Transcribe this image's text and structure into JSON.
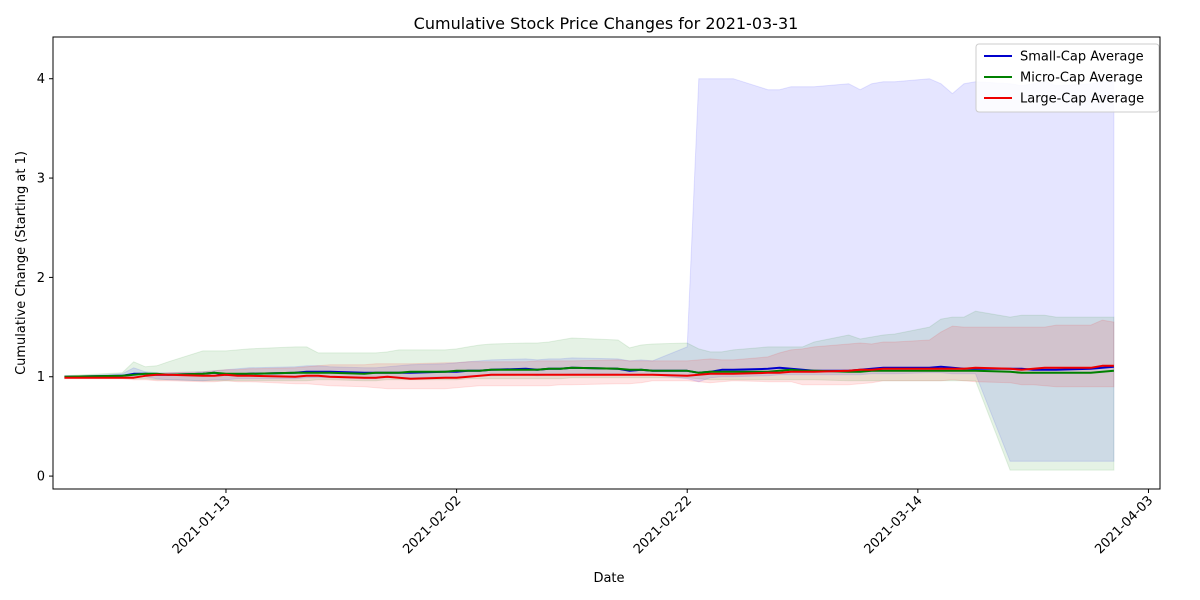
{
  "chart_data": {
    "type": "line",
    "title": "Cumulative Stock Price Changes for 2021-03-31",
    "xlabel": "Date",
    "ylabel": "Cumulative Change (Starting at 1)",
    "ylim": [
      -0.13,
      4.42
    ],
    "xlim": [
      "2020-12-29",
      "2021-04-04"
    ],
    "x_ticks": [
      "2021-01-13",
      "2021-02-02",
      "2021-02-22",
      "2021-03-14",
      "2021-04-03"
    ],
    "y_ticks": [
      0,
      1,
      2,
      3,
      4
    ],
    "grid": false,
    "legend_position": "top-right",
    "x": [
      "2020-12-30",
      "2021-01-04",
      "2021-01-05",
      "2021-01-06",
      "2021-01-07",
      "2021-01-08",
      "2021-01-11",
      "2021-01-12",
      "2021-01-13",
      "2021-01-14",
      "2021-01-15",
      "2021-01-19",
      "2021-01-20",
      "2021-01-21",
      "2021-01-22",
      "2021-01-25",
      "2021-01-26",
      "2021-01-27",
      "2021-01-28",
      "2021-01-29",
      "2021-02-01",
      "2021-02-02",
      "2021-02-03",
      "2021-02-04",
      "2021-02-05",
      "2021-02-08",
      "2021-02-09",
      "2021-02-10",
      "2021-02-11",
      "2021-02-12",
      "2021-02-16",
      "2021-02-17",
      "2021-02-18",
      "2021-02-19",
      "2021-02-22",
      "2021-02-23",
      "2021-02-24",
      "2021-02-25",
      "2021-02-26",
      "2021-03-01",
      "2021-03-02",
      "2021-03-03",
      "2021-03-04",
      "2021-03-05",
      "2021-03-08",
      "2021-03-09",
      "2021-03-10",
      "2021-03-11",
      "2021-03-12",
      "2021-03-15",
      "2021-03-16",
      "2021-03-17",
      "2021-03-18",
      "2021-03-19",
      "2021-03-22",
      "2021-03-23",
      "2021-03-24",
      "2021-03-25",
      "2021-03-26",
      "2021-03-29",
      "2021-03-30",
      "2021-03-31"
    ],
    "series": [
      {
        "name": "Small-Cap Average",
        "color": "#0000cc",
        "band_color": "#0000ff",
        "values": [
          1.0,
          1.01,
          1.03,
          1.03,
          1.02,
          1.02,
          1.03,
          1.04,
          1.02,
          1.02,
          1.03,
          1.04,
          1.05,
          1.05,
          1.05,
          1.04,
          1.04,
          1.04,
          1.04,
          1.04,
          1.05,
          1.05,
          1.06,
          1.06,
          1.07,
          1.08,
          1.07,
          1.08,
          1.08,
          1.09,
          1.08,
          1.06,
          1.07,
          1.06,
          1.06,
          1.04,
          1.05,
          1.07,
          1.07,
          1.08,
          1.09,
          1.08,
          1.07,
          1.06,
          1.06,
          1.07,
          1.08,
          1.09,
          1.09,
          1.09,
          1.1,
          1.09,
          1.08,
          1.08,
          1.08,
          1.08,
          1.07,
          1.07,
          1.07,
          1.08,
          1.09,
          1.1
        ],
        "band_low": [
          0.99,
          0.99,
          1.0,
          1.0,
          0.98,
          0.97,
          0.96,
          0.97,
          0.97,
          0.98,
          0.98,
          0.98,
          0.99,
          0.99,
          0.99,
          0.98,
          0.98,
          0.99,
          0.99,
          0.99,
          1.0,
          1.0,
          1.01,
          1.01,
          1.01,
          1.02,
          1.01,
          1.02,
          1.02,
          1.03,
          1.03,
          1.02,
          1.02,
          1.02,
          0.98,
          0.95,
          0.99,
          1.0,
          1.0,
          1.01,
          1.02,
          1.02,
          1.02,
          1.02,
          1.02,
          1.02,
          1.03,
          1.03,
          1.03,
          1.04,
          1.04,
          1.03,
          1.03,
          1.03,
          0.15,
          0.15,
          0.15,
          0.15,
          0.15,
          0.15,
          0.15,
          0.15
        ],
        "band_high": [
          1.0,
          1.03,
          1.09,
          1.05,
          1.04,
          1.04,
          1.05,
          1.06,
          1.07,
          1.08,
          1.09,
          1.1,
          1.11,
          1.11,
          1.1,
          1.09,
          1.09,
          1.1,
          1.11,
          1.12,
          1.13,
          1.14,
          1.15,
          1.16,
          1.17,
          1.18,
          1.17,
          1.18,
          1.18,
          1.19,
          1.18,
          1.16,
          1.17,
          1.16,
          1.3,
          4.0,
          4.0,
          4.0,
          4.0,
          3.89,
          3.89,
          3.92,
          3.92,
          3.92,
          3.95,
          3.89,
          3.95,
          3.97,
          3.97,
          4.0,
          3.95,
          3.85,
          3.95,
          3.97,
          3.95,
          3.93,
          3.95,
          3.97,
          3.93,
          3.95,
          3.97,
          3.97
        ]
      },
      {
        "name": "Micro-Cap Average",
        "color": "#008000",
        "band_color": "#008000",
        "values": [
          1.0,
          1.01,
          1.02,
          1.03,
          1.03,
          1.02,
          1.03,
          1.04,
          1.03,
          1.03,
          1.03,
          1.04,
          1.04,
          1.04,
          1.04,
          1.03,
          1.04,
          1.04,
          1.04,
          1.05,
          1.05,
          1.06,
          1.06,
          1.06,
          1.07,
          1.07,
          1.07,
          1.08,
          1.08,
          1.09,
          1.08,
          1.07,
          1.07,
          1.06,
          1.06,
          1.04,
          1.05,
          1.05,
          1.05,
          1.05,
          1.06,
          1.07,
          1.06,
          1.06,
          1.05,
          1.05,
          1.06,
          1.06,
          1.06,
          1.06,
          1.06,
          1.06,
          1.06,
          1.06,
          1.05,
          1.04,
          1.04,
          1.04,
          1.04,
          1.04,
          1.05,
          1.06
        ],
        "band_low": [
          0.99,
          0.99,
          0.98,
          0.98,
          0.97,
          0.97,
          0.96,
          0.96,
          0.96,
          0.96,
          0.96,
          0.96,
          0.96,
          0.97,
          0.97,
          0.96,
          0.96,
          0.97,
          0.97,
          0.97,
          0.97,
          0.97,
          0.98,
          0.98,
          0.98,
          0.98,
          0.98,
          0.98,
          0.98,
          0.99,
          0.99,
          0.99,
          0.99,
          0.99,
          0.99,
          0.98,
          0.97,
          0.97,
          0.97,
          0.97,
          0.97,
          0.97,
          0.97,
          0.97,
          0.96,
          0.96,
          0.96,
          0.96,
          0.96,
          0.96,
          0.96,
          0.96,
          0.96,
          0.96,
          0.06,
          0.06,
          0.06,
          0.06,
          0.06,
          0.06,
          0.06,
          0.06
        ],
        "band_high": [
          1.01,
          1.04,
          1.15,
          1.1,
          1.11,
          1.15,
          1.26,
          1.26,
          1.26,
          1.27,
          1.28,
          1.3,
          1.3,
          1.24,
          1.24,
          1.24,
          1.24,
          1.25,
          1.27,
          1.27,
          1.27,
          1.28,
          1.3,
          1.32,
          1.33,
          1.34,
          1.34,
          1.35,
          1.37,
          1.39,
          1.37,
          1.29,
          1.32,
          1.33,
          1.34,
          1.28,
          1.25,
          1.25,
          1.27,
          1.3,
          1.3,
          1.3,
          1.3,
          1.35,
          1.42,
          1.38,
          1.4,
          1.42,
          1.43,
          1.5,
          1.58,
          1.6,
          1.6,
          1.66,
          1.6,
          1.62,
          1.62,
          1.62,
          1.6,
          1.6,
          1.6,
          1.6
        ]
      },
      {
        "name": "Large-Cap Average",
        "color": "#ee0000",
        "band_color": "#ff0000",
        "values": [
          0.99,
          0.99,
          0.99,
          1.01,
          1.02,
          1.02,
          1.01,
          1.01,
          1.02,
          1.01,
          1.01,
          1.0,
          1.01,
          1.01,
          1.0,
          0.99,
          0.99,
          1.0,
          0.99,
          0.98,
          0.99,
          0.99,
          1.0,
          1.01,
          1.02,
          1.02,
          1.02,
          1.02,
          1.02,
          1.02,
          1.02,
          1.02,
          1.02,
          1.02,
          1.01,
          1.02,
          1.03,
          1.03,
          1.03,
          1.04,
          1.04,
          1.05,
          1.05,
          1.05,
          1.06,
          1.07,
          1.07,
          1.08,
          1.08,
          1.08,
          1.08,
          1.08,
          1.08,
          1.09,
          1.08,
          1.07,
          1.08,
          1.09,
          1.09,
          1.09,
          1.11,
          1.11
        ],
        "band_low": [
          0.98,
          0.98,
          0.97,
          0.97,
          0.96,
          0.96,
          0.95,
          0.95,
          0.96,
          0.95,
          0.95,
          0.93,
          0.93,
          0.92,
          0.91,
          0.9,
          0.89,
          0.88,
          0.88,
          0.88,
          0.88,
          0.89,
          0.9,
          0.91,
          0.91,
          0.91,
          0.91,
          0.91,
          0.92,
          0.92,
          0.93,
          0.93,
          0.94,
          0.96,
          0.96,
          0.95,
          0.94,
          0.95,
          0.96,
          0.95,
          0.95,
          0.95,
          0.92,
          0.92,
          0.92,
          0.93,
          0.94,
          0.96,
          0.96,
          0.96,
          0.96,
          0.97,
          0.96,
          0.95,
          0.94,
          0.92,
          0.92,
          0.91,
          0.9,
          0.9,
          0.9,
          0.9
        ],
        "band_high": [
          1.0,
          1.0,
          1.0,
          1.01,
          1.03,
          1.04,
          1.05,
          1.06,
          1.07,
          1.07,
          1.08,
          1.09,
          1.1,
          1.11,
          1.12,
          1.12,
          1.13,
          1.13,
          1.13,
          1.13,
          1.14,
          1.14,
          1.15,
          1.15,
          1.15,
          1.15,
          1.16,
          1.16,
          1.16,
          1.16,
          1.17,
          1.16,
          1.16,
          1.16,
          1.16,
          1.17,
          1.18,
          1.17,
          1.17,
          1.2,
          1.24,
          1.27,
          1.28,
          1.3,
          1.33,
          1.34,
          1.33,
          1.35,
          1.35,
          1.37,
          1.45,
          1.51,
          1.5,
          1.5,
          1.5,
          1.5,
          1.5,
          1.5,
          1.52,
          1.52,
          1.57,
          1.55
        ]
      }
    ]
  }
}
